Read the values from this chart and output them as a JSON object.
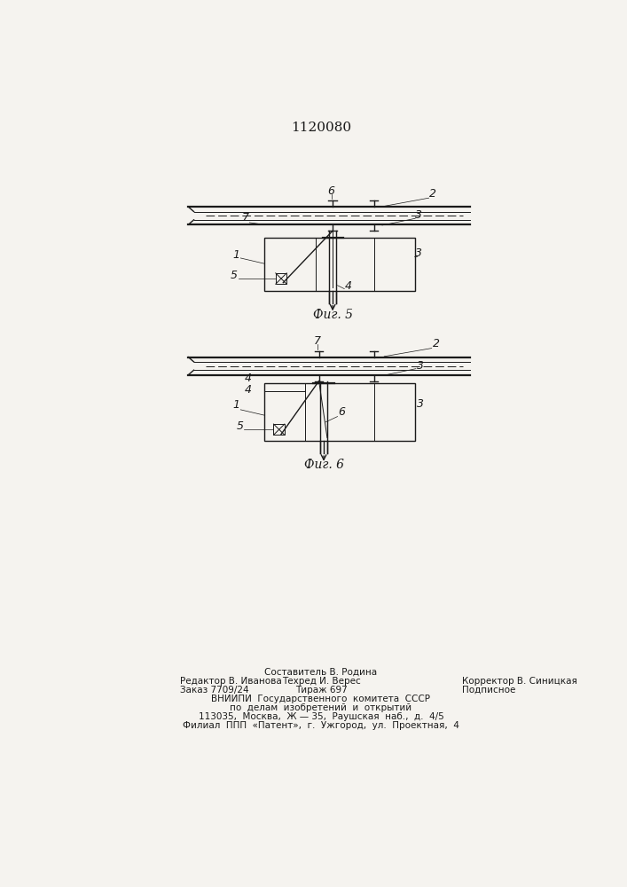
{
  "title": "1120080",
  "fig5_label": "Фиг. 5",
  "fig6_label": "Фиг. 6",
  "bg_color": "#f5f3ef",
  "line_color": "#1a1a1a"
}
